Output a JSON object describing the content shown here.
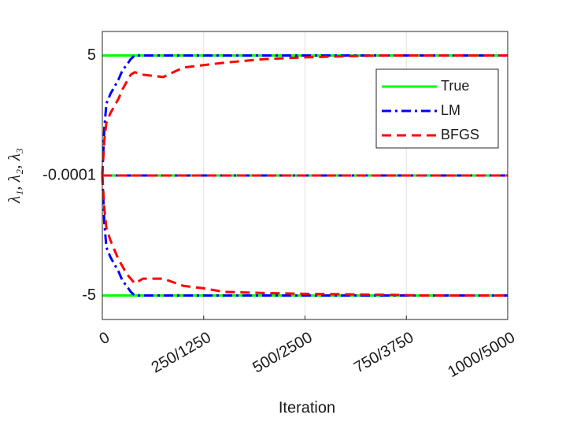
{
  "chart_data": {
    "type": "line",
    "xlabel": "Iteration",
    "ylabel": "λ₁, λ₂, λ₃",
    "xlim": [
      0,
      1000
    ],
    "ylim": [
      -6,
      6
    ],
    "xticks": [
      0,
      {
        "value": 250,
        "label": "250/1250"
      },
      {
        "value": 500,
        "label": "500/2500"
      },
      {
        "value": 750,
        "label": "750/3750"
      },
      {
        "value": 1000,
        "label": "1000/5000"
      }
    ],
    "yticks": [
      -5,
      -0.0001,
      5
    ],
    "xgrid": true,
    "legend": "upper right",
    "x": [
      0,
      5,
      10,
      20,
      30,
      40,
      50,
      60,
      70,
      80,
      100,
      150,
      200,
      250,
      300,
      400,
      500,
      600,
      700,
      800,
      900,
      1000
    ],
    "series": [
      {
        "name": "True",
        "color": "#00ff00",
        "dash": "solid",
        "lines": [
          [
            5,
            5,
            5,
            5,
            5,
            5,
            5,
            5,
            5,
            5,
            5,
            5,
            5,
            5,
            5,
            5,
            5,
            5,
            5,
            5,
            5,
            5
          ],
          [
            -0.0001,
            -0.0001,
            -0.0001,
            -0.0001,
            -0.0001,
            -0.0001,
            -0.0001,
            -0.0001,
            -0.0001,
            -0.0001,
            -0.0001,
            -0.0001,
            -0.0001,
            -0.0001,
            -0.0001,
            -0.0001,
            -0.0001,
            -0.0001,
            -0.0001,
            -0.0001,
            -0.0001,
            -0.0001
          ],
          [
            -5,
            -5,
            -5,
            -5,
            -5,
            -5,
            -5,
            -5,
            -5,
            -5,
            -5,
            -5,
            -5,
            -5,
            -5,
            -5,
            -5,
            -5,
            -5,
            -5,
            -5,
            -5
          ]
        ]
      },
      {
        "name": "LM",
        "color": "#0000ff",
        "dash": "dashdot",
        "lines": [
          [
            0,
            2.0,
            3.0,
            3.4,
            3.7,
            4.0,
            4.4,
            4.6,
            4.85,
            5,
            5,
            5,
            5,
            5,
            5,
            5,
            5,
            5,
            5,
            5,
            5,
            5
          ],
          [
            -0.0001,
            -0.0001,
            -0.0001,
            -0.0001,
            -0.0001,
            -0.0001,
            -0.0001,
            -0.0001,
            -0.0001,
            -0.0001,
            -0.0001,
            -0.0001,
            -0.0001,
            -0.0001,
            -0.0001,
            -0.0001,
            -0.0001,
            -0.0001,
            -0.0001,
            -0.0001,
            -0.0001,
            -0.0001
          ],
          [
            0,
            -2.0,
            -3.0,
            -3.4,
            -3.7,
            -4.0,
            -4.4,
            -4.6,
            -4.85,
            -5,
            -5,
            -5,
            -5,
            -5,
            -5,
            -5,
            -5,
            -5,
            -5,
            -5,
            -5,
            -5
          ]
        ]
      },
      {
        "name": "BFGS",
        "color": "#ff0000",
        "dash": "dashed",
        "lines": [
          [
            0,
            1.5,
            2.2,
            2.6,
            2.9,
            3.2,
            3.6,
            3.9,
            4.2,
            4.3,
            4.2,
            4.1,
            4.5,
            4.6,
            4.7,
            4.85,
            4.92,
            4.97,
            5,
            5,
            5,
            5
          ],
          [
            -0.0001,
            -0.0001,
            -0.0001,
            -0.0001,
            -0.0001,
            -0.0001,
            -0.0001,
            -0.0001,
            -0.0001,
            -0.0001,
            -0.0001,
            -0.0001,
            -0.0001,
            -0.0001,
            -0.0001,
            -0.0001,
            -0.0001,
            -0.0001,
            -0.0001,
            -0.0001,
            -0.0001,
            -0.0001
          ],
          [
            0,
            -1.4,
            -2.2,
            -2.7,
            -3.1,
            -3.5,
            -3.8,
            -4.1,
            -4.3,
            -4.5,
            -4.3,
            -4.3,
            -4.6,
            -4.7,
            -4.85,
            -4.9,
            -4.93,
            -4.95,
            -4.97,
            -5,
            -5,
            -5
          ]
        ]
      }
    ]
  }
}
